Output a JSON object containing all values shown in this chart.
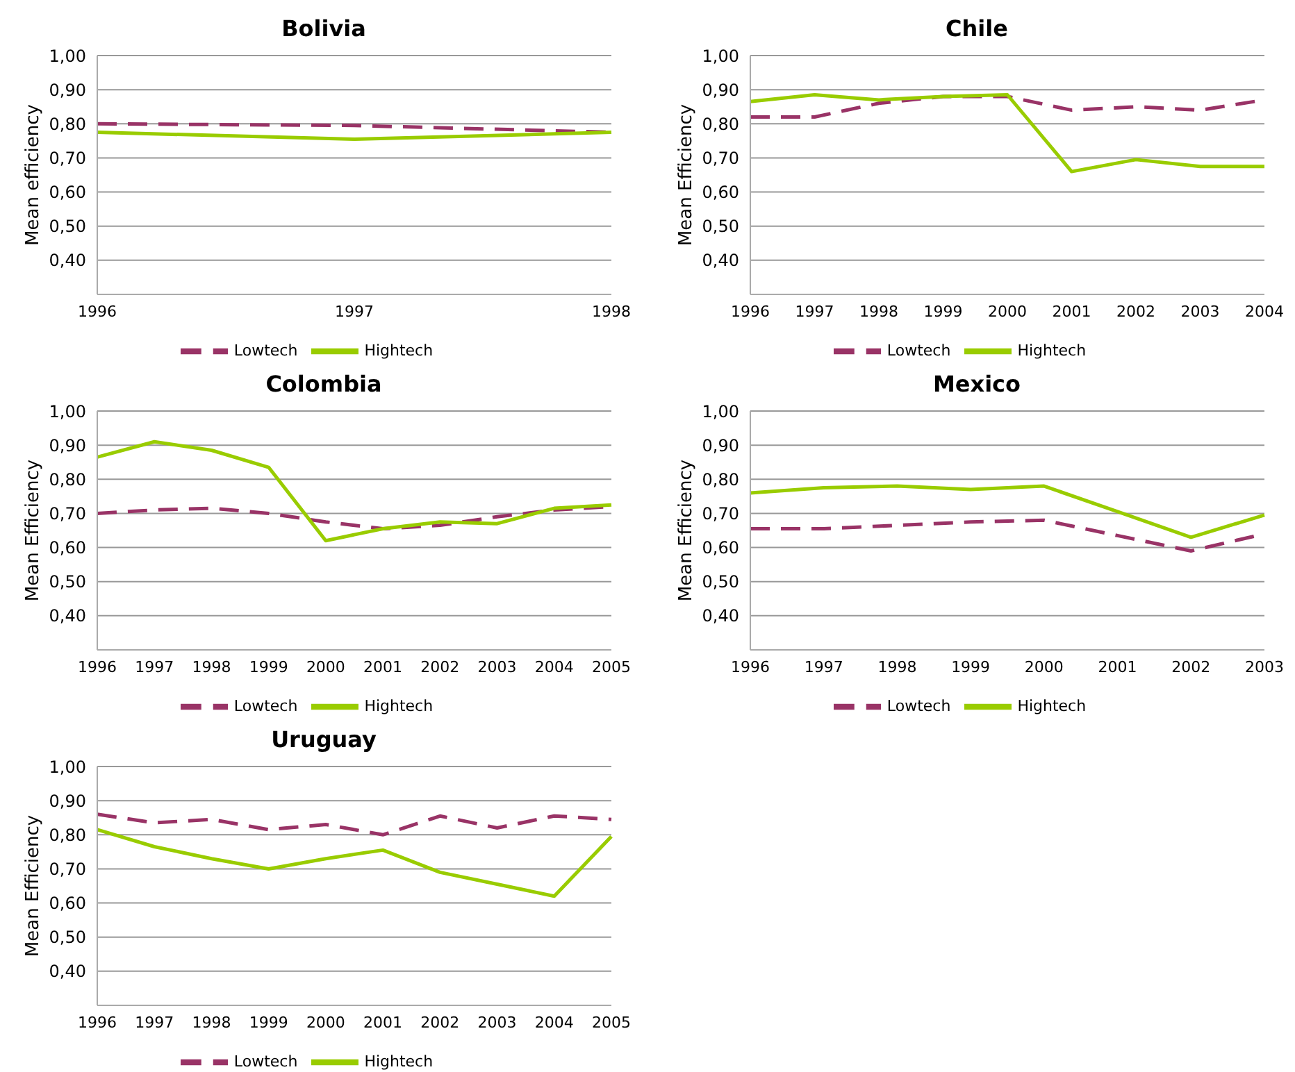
{
  "chart_data": [
    {
      "type": "line",
      "title": "Bolivia",
      "ylabel": "Mean efficiency",
      "categories": [
        "1996",
        "1997",
        "1998"
      ],
      "ylim": [
        0.3,
        1.0
      ],
      "yticks": [
        {
          "value": 0.4,
          "label": "0,40"
        },
        {
          "value": 0.5,
          "label": "0,50"
        },
        {
          "value": 0.6,
          "label": "0,60"
        },
        {
          "value": 0.7,
          "label": "0,70"
        },
        {
          "value": 0.8,
          "label": "0,80"
        },
        {
          "value": 0.9,
          "label": "0,90"
        },
        {
          "value": 1.0,
          "label": "1,00"
        }
      ],
      "grid": "y",
      "legend": "bottom",
      "series": [
        {
          "name": "Lowtech",
          "color": "#993366",
          "line_style": "dashed",
          "values": [
            0.8,
            0.795,
            0.775
          ]
        },
        {
          "name": "Hightech",
          "color": "#99cc00",
          "line_style": "solid",
          "values": [
            0.775,
            0.755,
            0.775
          ]
        }
      ]
    },
    {
      "type": "line",
      "title": "Chile",
      "ylabel": "Mean Efficiency",
      "categories": [
        "1996",
        "1997",
        "1998",
        "1999",
        "2000",
        "2001",
        "2002",
        "2003",
        "2004"
      ],
      "ylim": [
        0.3,
        1.0
      ],
      "yticks": [
        {
          "value": 0.4,
          "label": "0,40"
        },
        {
          "value": 0.5,
          "label": "0,50"
        },
        {
          "value": 0.6,
          "label": "0,60"
        },
        {
          "value": 0.7,
          "label": "0,70"
        },
        {
          "value": 0.8,
          "label": "0,80"
        },
        {
          "value": 0.9,
          "label": "0,90"
        },
        {
          "value": 1.0,
          "label": "1,00"
        }
      ],
      "grid": "y",
      "legend": "bottom",
      "series": [
        {
          "name": "Lowtech",
          "color": "#993366",
          "line_style": "dashed",
          "values": [
            0.82,
            0.82,
            0.86,
            0.88,
            0.88,
            0.84,
            0.85,
            0.84,
            0.87
          ]
        },
        {
          "name": "Hightech",
          "color": "#99cc00",
          "line_style": "solid",
          "values": [
            0.865,
            0.885,
            0.87,
            0.88,
            0.885,
            0.66,
            0.695,
            0.675,
            0.675
          ]
        }
      ]
    },
    {
      "type": "line",
      "title": "Colombia",
      "ylabel": "Mean Efficiency",
      "categories": [
        "1996",
        "1997",
        "1998",
        "1999",
        "2000",
        "2001",
        "2002",
        "2003",
        "2004",
        "2005"
      ],
      "ylim": [
        0.3,
        1.0
      ],
      "yticks": [
        {
          "value": 0.4,
          "label": "0,40"
        },
        {
          "value": 0.5,
          "label": "0,50"
        },
        {
          "value": 0.6,
          "label": "0,60"
        },
        {
          "value": 0.7,
          "label": "0,70"
        },
        {
          "value": 0.8,
          "label": "0,80"
        },
        {
          "value": 0.9,
          "label": "0,90"
        },
        {
          "value": 1.0,
          "label": "1,00"
        }
      ],
      "grid": "y",
      "legend": "bottom",
      "series": [
        {
          "name": "Lowtech",
          "color": "#993366",
          "line_style": "dashed",
          "values": [
            0.7,
            0.71,
            0.715,
            0.7,
            0.675,
            0.655,
            0.665,
            0.69,
            0.71,
            0.72
          ]
        },
        {
          "name": "Hightech",
          "color": "#99cc00",
          "line_style": "solid",
          "values": [
            0.865,
            0.91,
            0.885,
            0.835,
            0.62,
            0.655,
            0.675,
            0.67,
            0.715,
            0.725
          ]
        }
      ]
    },
    {
      "type": "line",
      "title": "Mexico",
      "ylabel": "Mean Efficiency",
      "categories": [
        "1996",
        "1997",
        "1998",
        "1999",
        "2000",
        "2001",
        "2002",
        "2003"
      ],
      "ylim": [
        0.3,
        1.0
      ],
      "yticks": [
        {
          "value": 0.4,
          "label": "0,40"
        },
        {
          "value": 0.5,
          "label": "0,50"
        },
        {
          "value": 0.6,
          "label": "0,60"
        },
        {
          "value": 0.7,
          "label": "0,70"
        },
        {
          "value": 0.8,
          "label": "0,80"
        },
        {
          "value": 0.9,
          "label": "0,90"
        },
        {
          "value": 1.0,
          "label": "1,00"
        }
      ],
      "grid": "y",
      "legend": "bottom",
      "series": [
        {
          "name": "Lowtech",
          "color": "#993366",
          "line_style": "dashed",
          "values": [
            0.655,
            0.655,
            0.665,
            0.675,
            0.68,
            0.635,
            0.59,
            0.64
          ]
        },
        {
          "name": "Hightech",
          "color": "#99cc00",
          "line_style": "solid",
          "values": [
            0.76,
            0.775,
            0.78,
            0.77,
            0.78,
            0.705,
            0.63,
            0.695
          ]
        }
      ]
    },
    {
      "type": "line",
      "title": "Uruguay",
      "ylabel": "Mean Efficiency",
      "categories": [
        "1996",
        "1997",
        "1998",
        "1999",
        "2000",
        "2001",
        "2002",
        "2003",
        "2004",
        "2005"
      ],
      "ylim": [
        0.3,
        1.0
      ],
      "yticks": [
        {
          "value": 0.4,
          "label": "0,40"
        },
        {
          "value": 0.5,
          "label": "0,50"
        },
        {
          "value": 0.6,
          "label": "0,60"
        },
        {
          "value": 0.7,
          "label": "0,70"
        },
        {
          "value": 0.8,
          "label": "0,80"
        },
        {
          "value": 0.9,
          "label": "0,90"
        },
        {
          "value": 1.0,
          "label": "1,00"
        }
      ],
      "grid": "y",
      "legend": "bottom",
      "series": [
        {
          "name": "Lowtech",
          "color": "#993366",
          "line_style": "dashed",
          "values": [
            0.86,
            0.835,
            0.845,
            0.815,
            0.83,
            0.8,
            0.855,
            0.82,
            0.855,
            0.845
          ]
        },
        {
          "name": "Hightech",
          "color": "#99cc00",
          "line_style": "solid",
          "values": [
            0.815,
            0.765,
            0.73,
            0.7,
            0.73,
            0.755,
            0.69,
            0.655,
            0.62,
            0.795
          ]
        }
      ]
    }
  ]
}
